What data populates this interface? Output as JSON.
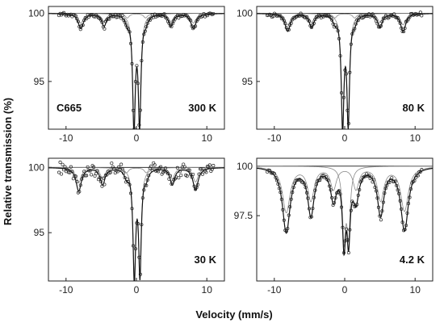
{
  "figure": {
    "ylabel": "Relative transmission (%)",
    "xlabel": "Velocity (mm/s)"
  },
  "chart_data": [
    {
      "type": "scatter",
      "panel": "top-left",
      "sample_label": "C665",
      "temperature_label": "300 K",
      "xlim": [
        -12.5,
        12.5
      ],
      "ylim": [
        91.5,
        100.5
      ],
      "x_ticks": [
        -10,
        0,
        10
      ],
      "y_ticks": [
        95,
        100
      ],
      "x_tick_labels": [
        "-10",
        "0",
        "10"
      ],
      "y_tick_labels": [
        "95",
        "100"
      ],
      "baseline": 100,
      "noise": 0.08,
      "subspectra_scale": 0.65,
      "lines": [
        {
          "center": -7.9,
          "depth": 1.1,
          "width": 0.9
        },
        {
          "center": -4.6,
          "depth": 0.9,
          "width": 0.8
        },
        {
          "center": -1.3,
          "depth": 0.5,
          "width": 0.7
        },
        {
          "center": 1.3,
          "depth": 0.5,
          "width": 0.7
        },
        {
          "center": 4.9,
          "depth": 0.9,
          "width": 0.8
        },
        {
          "center": 8.1,
          "depth": 1.1,
          "width": 0.9
        },
        {
          "center": -0.35,
          "depth": 8.2,
          "width": 0.45
        },
        {
          "center": 0.45,
          "depth": 7.9,
          "width": 0.45
        }
      ]
    },
    {
      "type": "scatter",
      "panel": "top-right",
      "sample_label": "",
      "temperature_label": "80 K",
      "xlim": [
        -12.5,
        12.5
      ],
      "ylim": [
        91.5,
        100.5
      ],
      "x_ticks": [
        -10,
        0,
        10
      ],
      "y_ticks": [
        95,
        100
      ],
      "x_tick_labels": [
        "-10",
        "0",
        "10"
      ],
      "y_tick_labels": [
        "95",
        "100"
      ],
      "baseline": 100,
      "noise": 0.08,
      "subspectra_scale": 0.65,
      "lines": [
        {
          "center": -8.1,
          "depth": 1.3,
          "width": 0.9
        },
        {
          "center": -4.7,
          "depth": 1.0,
          "width": 0.8
        },
        {
          "center": -1.4,
          "depth": 0.5,
          "width": 0.7
        },
        {
          "center": 1.4,
          "depth": 0.5,
          "width": 0.7
        },
        {
          "center": 5.0,
          "depth": 1.0,
          "width": 0.8
        },
        {
          "center": 8.3,
          "depth": 1.3,
          "width": 0.9
        },
        {
          "center": -0.3,
          "depth": 8.2,
          "width": 0.45
        },
        {
          "center": 0.5,
          "depth": 7.8,
          "width": 0.45
        }
      ]
    },
    {
      "type": "scatter",
      "panel": "bottom-left",
      "sample_label": "",
      "temperature_label": "30 K",
      "xlim": [
        -12.5,
        12.5
      ],
      "ylim": [
        91.3,
        100.7
      ],
      "x_ticks": [
        -10,
        0,
        10
      ],
      "y_ticks": [
        95,
        100
      ],
      "x_tick_labels": [
        "-10",
        "0",
        "10"
      ],
      "y_tick_labels": [
        "95",
        "100"
      ],
      "baseline": 100,
      "noise": 0.25,
      "subspectra_scale": 0.65,
      "lines": [
        {
          "center": -8.2,
          "depth": 1.8,
          "width": 0.9
        },
        {
          "center": -4.8,
          "depth": 1.3,
          "width": 0.8
        },
        {
          "center": -1.4,
          "depth": 0.6,
          "width": 0.7
        },
        {
          "center": 1.4,
          "depth": 0.6,
          "width": 0.7
        },
        {
          "center": 5.1,
          "depth": 1.3,
          "width": 0.8
        },
        {
          "center": 8.4,
          "depth": 1.7,
          "width": 0.9
        },
        {
          "center": -0.3,
          "depth": 8.3,
          "width": 0.45
        },
        {
          "center": 0.5,
          "depth": 7.9,
          "width": 0.45
        }
      ]
    },
    {
      "type": "scatter",
      "panel": "bottom-right",
      "sample_label": "",
      "temperature_label": "4.2 K",
      "xlim": [
        -12.5,
        12.5
      ],
      "ylim": [
        94.2,
        100.4
      ],
      "x_ticks": [
        -10,
        0,
        10
      ],
      "y_ticks": [
        97.5,
        100
      ],
      "x_tick_labels": [
        "-10",
        "0",
        "10"
      ],
      "y_tick_labels": [
        "97.5",
        "100"
      ],
      "baseline": 100,
      "noise": 0.06,
      "subspectra_scale": 0.7,
      "lines": [
        {
          "center": -8.3,
          "depth": 3.3,
          "width": 1.3
        },
        {
          "center": -4.8,
          "depth": 2.4,
          "width": 1.1
        },
        {
          "center": -1.6,
          "depth": 1.6,
          "width": 1.0
        },
        {
          "center": 1.6,
          "depth": 1.6,
          "width": 1.0
        },
        {
          "center": 5.1,
          "depth": 2.4,
          "width": 1.1
        },
        {
          "center": 8.5,
          "depth": 3.2,
          "width": 1.3
        },
        {
          "center": -0.1,
          "depth": 3.6,
          "width": 0.55
        },
        {
          "center": 0.55,
          "depth": 3.3,
          "width": 0.55
        }
      ]
    }
  ]
}
